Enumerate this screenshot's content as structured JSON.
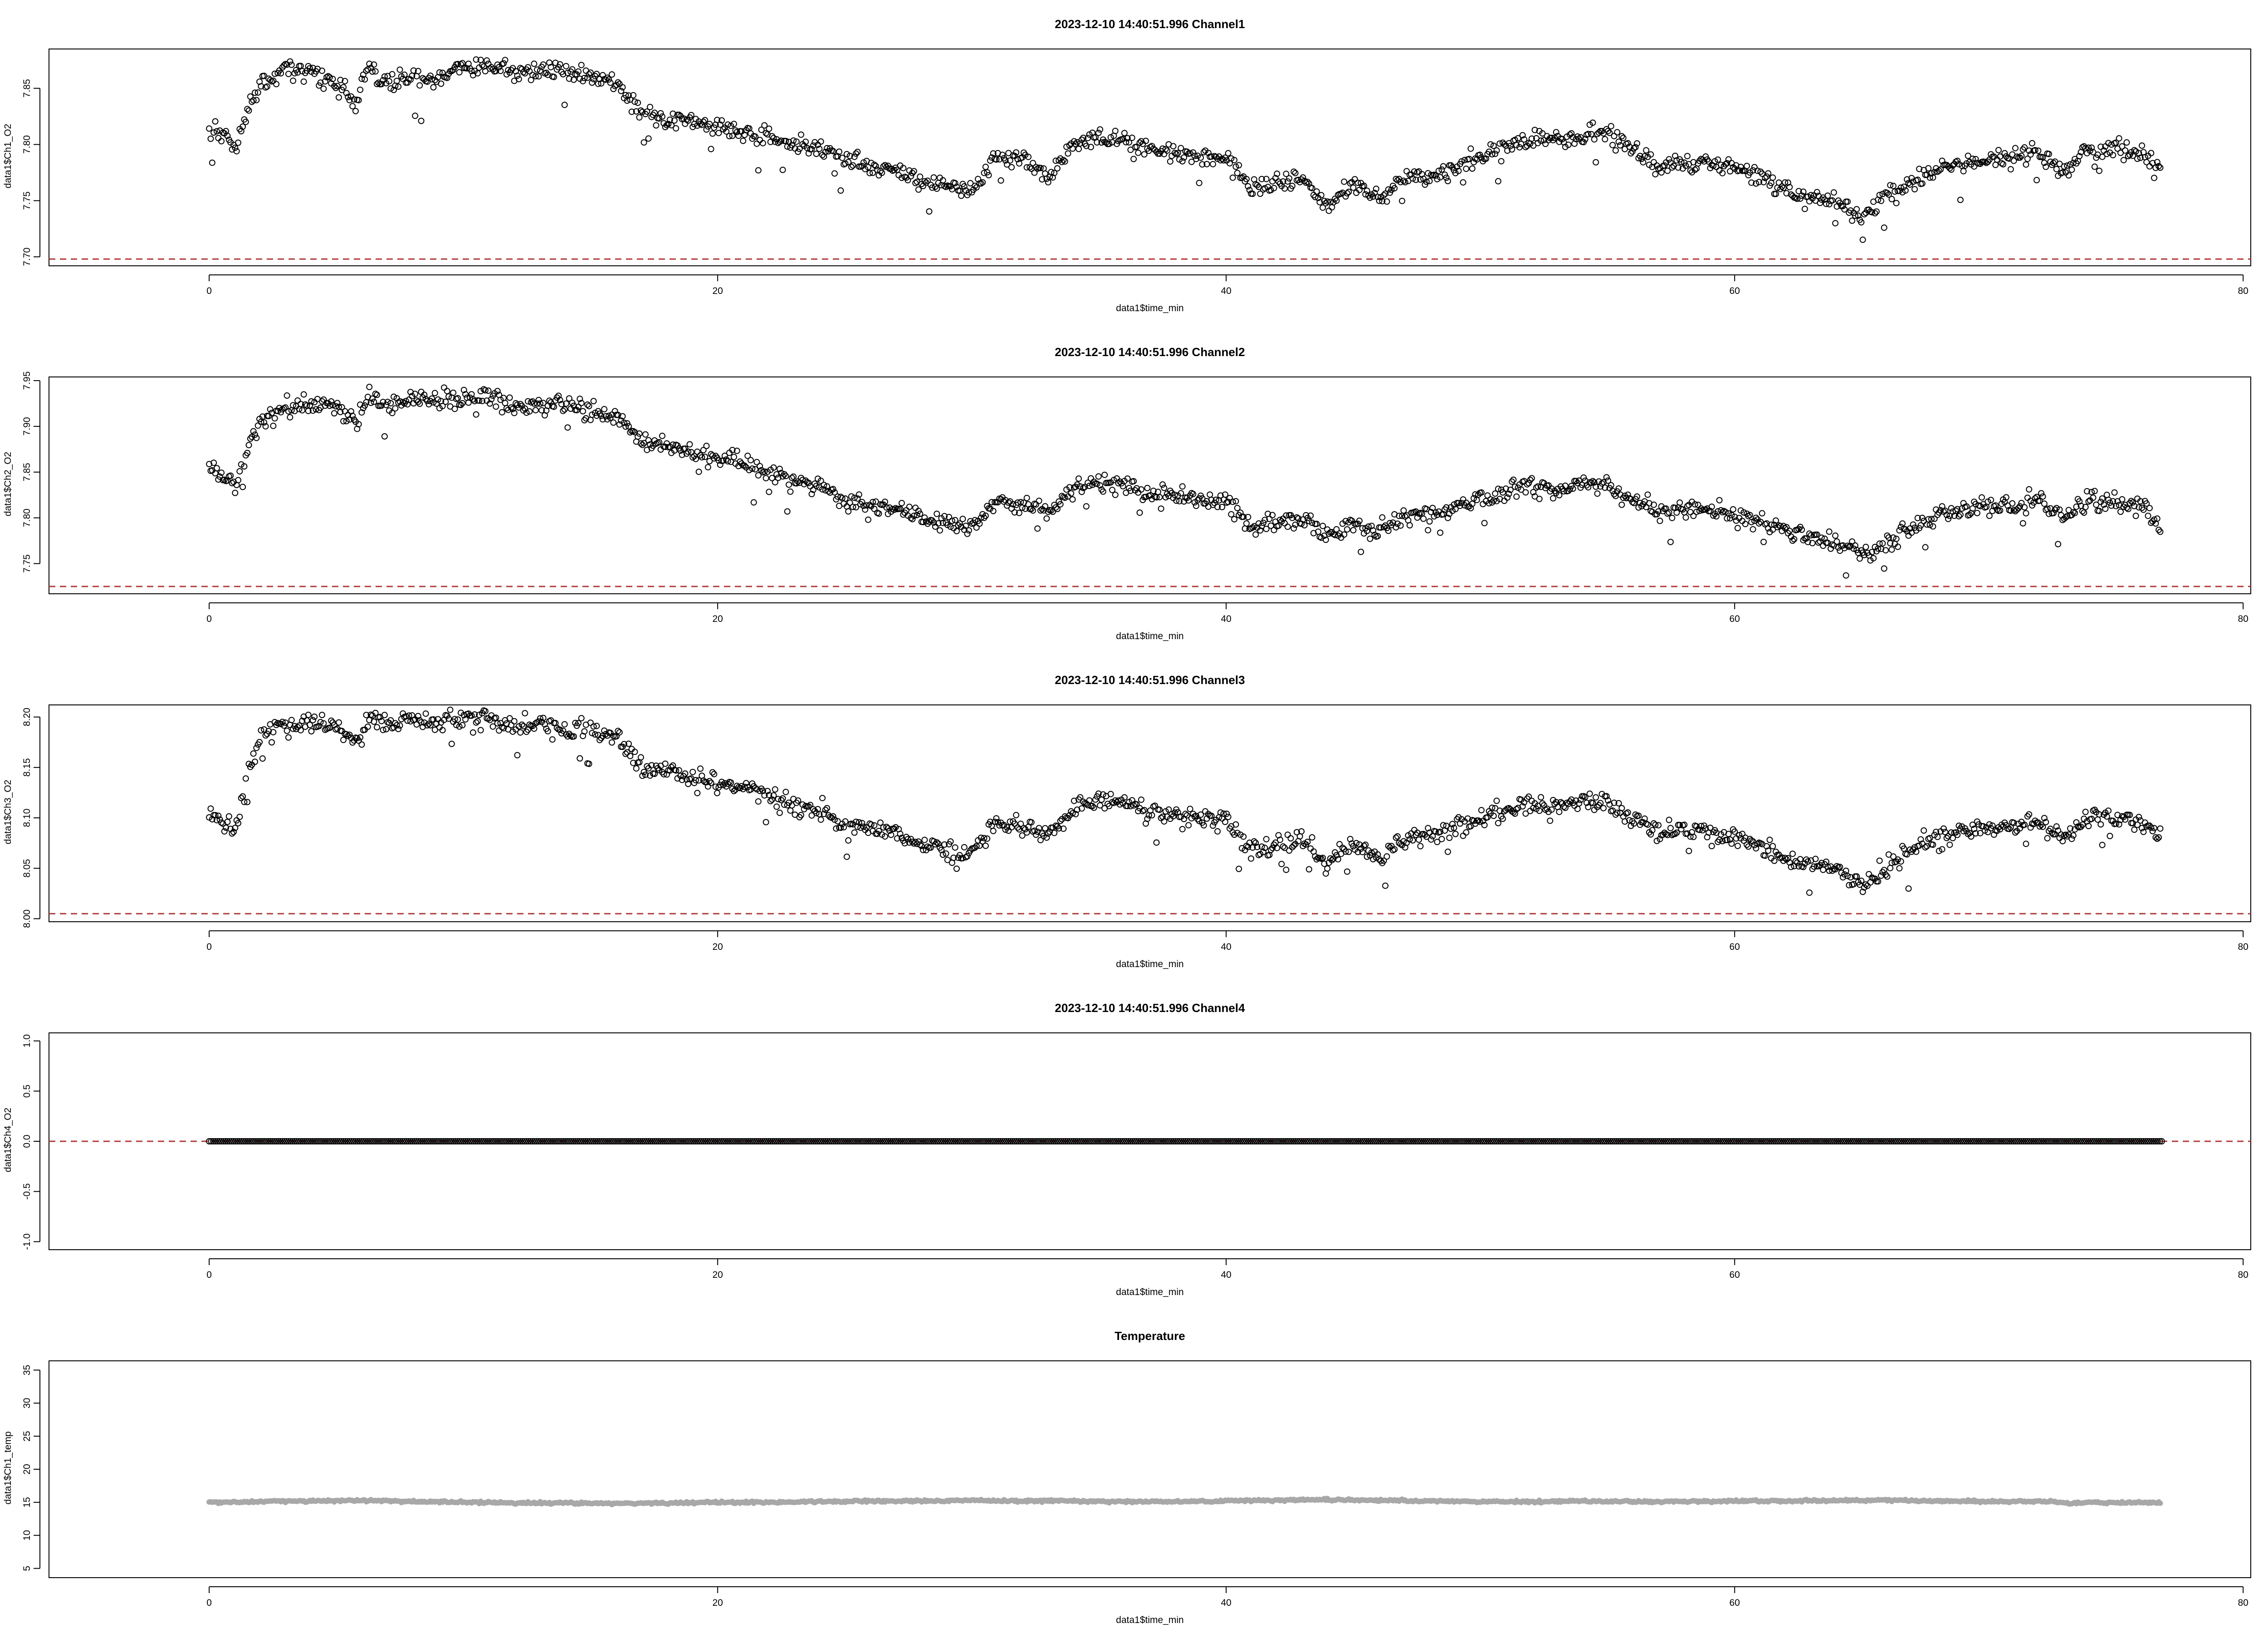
{
  "colors": {
    "points": "#000000",
    "reference_line": "#b03a3a",
    "temperature_points": "#a8a8a8",
    "axes": "#000000",
    "background": "#ffffff"
  },
  "chart_data": [
    {
      "type": "scatter",
      "title": "2023-12-10 14:40:51.996 Channel1",
      "xlabel": "data1$time_min",
      "ylabel": "data1$Ch1_O2",
      "xlim": [
        -6.3,
        80.3
      ],
      "ylim": [
        7.692,
        7.885
      ],
      "xticks": [
        0,
        20,
        40,
        60,
        80
      ],
      "yticks": [
        7.7,
        7.75,
        7.8,
        7.85
      ],
      "ytick_labels": [
        "7.70",
        "7.75",
        "7.80",
        "7.85"
      ],
      "reference_line": 7.698,
      "grid": false,
      "marker": "open-circle",
      "series": [
        {
          "x": [
            0,
            0.5,
            1,
            1.5,
            2,
            3,
            4,
            5,
            5.8,
            6.3,
            7,
            8,
            9,
            10,
            11,
            12,
            13,
            14,
            15,
            16,
            17,
            18,
            19,
            20,
            21,
            22,
            23,
            24,
            25,
            26,
            27,
            28,
            29,
            30,
            31,
            32,
            33,
            34,
            35,
            36,
            37,
            38,
            39,
            40,
            41,
            42,
            43,
            44,
            45,
            46,
            47,
            48,
            49,
            50,
            51,
            52,
            53,
            54,
            55,
            56,
            57,
            58,
            59,
            60,
            61,
            62,
            63,
            64,
            65,
            66,
            67,
            68,
            69,
            70,
            71,
            72,
            73,
            74,
            75,
            76,
            76.8
          ],
          "y": [
            7.812,
            7.812,
            7.795,
            7.832,
            7.852,
            7.868,
            7.865,
            7.852,
            7.835,
            7.87,
            7.855,
            7.86,
            7.858,
            7.868,
            7.872,
            7.862,
            7.866,
            7.866,
            7.862,
            7.855,
            7.83,
            7.825,
            7.818,
            7.815,
            7.812,
            7.808,
            7.8,
            7.798,
            7.785,
            7.78,
            7.778,
            7.768,
            7.765,
            7.76,
            7.79,
            7.788,
            7.77,
            7.8,
            7.805,
            7.803,
            7.795,
            7.792,
            7.788,
            7.788,
            7.76,
            7.765,
            7.77,
            7.745,
            7.762,
            7.752,
            7.77,
            7.772,
            7.78,
            7.79,
            7.798,
            7.805,
            7.802,
            7.808,
            7.81,
            7.795,
            7.78,
            7.785,
            7.782,
            7.78,
            7.772,
            7.76,
            7.755,
            7.75,
            7.735,
            7.755,
            7.765,
            7.78,
            7.782,
            7.788,
            7.79,
            7.792,
            7.775,
            7.798,
            7.795,
            7.793,
            7.78
          ]
        }
      ]
    },
    {
      "type": "scatter",
      "title": "2023-12-10 14:40:51.996 Channel2",
      "xlabel": "data1$time_min",
      "ylabel": "data1$Ch2_O2",
      "xlim": [
        -6.3,
        80.3
      ],
      "ylim": [
        7.717,
        7.954
      ],
      "xticks": [
        0,
        20,
        40,
        60,
        80
      ],
      "yticks": [
        7.75,
        7.8,
        7.85,
        7.9,
        7.95
      ],
      "ytick_labels": [
        "7.75",
        "7.80",
        "7.85",
        "7.90",
        "7.95"
      ],
      "reference_line": 7.725,
      "grid": false,
      "marker": "open-circle",
      "series": [
        {
          "x": [
            0,
            0.5,
            1,
            1.5,
            2,
            3,
            4,
            5,
            5.8,
            6.3,
            7,
            8,
            9,
            10,
            11,
            12,
            13,
            14,
            15,
            16,
            17,
            18,
            19,
            20,
            21,
            22,
            23,
            24,
            25,
            26,
            27,
            28,
            29,
            30,
            31,
            32,
            33,
            34,
            35,
            36,
            37,
            38,
            39,
            40,
            41,
            42,
            43,
            44,
            45,
            46,
            47,
            48,
            49,
            50,
            51,
            52,
            53,
            54,
            55,
            56,
            57,
            58,
            59,
            60,
            61,
            62,
            63,
            64,
            65,
            66,
            67,
            68,
            69,
            70,
            71,
            72,
            73,
            74,
            75,
            76,
            76.8
          ],
          "y": [
            7.852,
            7.845,
            7.835,
            7.872,
            7.905,
            7.922,
            7.925,
            7.92,
            7.905,
            7.935,
            7.925,
            7.93,
            7.928,
            7.935,
            7.932,
            7.922,
            7.925,
            7.922,
            7.918,
            7.91,
            7.885,
            7.88,
            7.87,
            7.865,
            7.86,
            7.85,
            7.84,
            7.835,
            7.82,
            7.815,
            7.812,
            7.8,
            7.795,
            7.79,
            7.82,
            7.815,
            7.805,
            7.83,
            7.838,
            7.835,
            7.825,
            7.822,
            7.82,
            7.82,
            7.79,
            7.795,
            7.802,
            7.778,
            7.795,
            7.785,
            7.8,
            7.805,
            7.812,
            7.82,
            7.828,
            7.835,
            7.83,
            7.838,
            7.835,
            7.82,
            7.808,
            7.812,
            7.808,
            7.805,
            7.795,
            7.785,
            7.78,
            7.772,
            7.758,
            7.775,
            7.79,
            7.805,
            7.808,
            7.812,
            7.815,
            7.818,
            7.8,
            7.82,
            7.815,
            7.812,
            7.795
          ]
        }
      ]
    },
    {
      "type": "scatter",
      "title": "2023-12-10 14:40:51.996 Channel3",
      "xlabel": "data1$time_min",
      "ylabel": "data1$Ch3_O2",
      "xlim": [
        -6.3,
        80.3
      ],
      "ylim": [
        7.997,
        8.212
      ],
      "xticks": [
        0,
        20,
        40,
        60,
        80
      ],
      "yticks": [
        8.0,
        8.05,
        8.1,
        8.15,
        8.2
      ],
      "ytick_labels": [
        "8.00",
        "8.05",
        "8.10",
        "8.15",
        "8.20"
      ],
      "reference_line": 8.005,
      "grid": false,
      "marker": "open-circle",
      "series": [
        {
          "x": [
            0,
            0.5,
            1,
            1.5,
            2,
            3,
            4,
            5,
            5.8,
            6.3,
            7,
            8,
            9,
            10,
            11,
            12,
            13,
            14,
            15,
            16,
            17,
            18,
            19,
            20,
            21,
            22,
            23,
            24,
            25,
            26,
            27,
            28,
            29,
            30,
            31,
            32,
            33,
            34,
            35,
            36,
            37,
            38,
            39,
            40,
            41,
            42,
            43,
            44,
            45,
            46,
            47,
            48,
            49,
            50,
            51,
            52,
            53,
            54,
            55,
            56,
            57,
            58,
            59,
            60,
            61,
            62,
            63,
            64,
            65,
            66,
            67,
            68,
            69,
            70,
            71,
            72,
            73,
            74,
            75,
            76,
            76.8
          ],
          "y": [
            8.105,
            8.1,
            8.09,
            8.14,
            8.18,
            8.193,
            8.195,
            8.19,
            8.175,
            8.2,
            8.192,
            8.196,
            8.194,
            8.2,
            8.198,
            8.19,
            8.192,
            8.19,
            8.186,
            8.18,
            8.15,
            8.148,
            8.14,
            8.135,
            8.13,
            8.122,
            8.112,
            8.108,
            8.092,
            8.088,
            8.085,
            8.075,
            8.07,
            8.065,
            8.095,
            8.092,
            8.082,
            8.11,
            8.118,
            8.115,
            8.105,
            8.102,
            8.1,
            8.098,
            8.065,
            8.072,
            8.08,
            8.052,
            8.072,
            8.06,
            8.078,
            8.082,
            8.09,
            8.1,
            8.108,
            8.115,
            8.11,
            8.118,
            8.115,
            8.098,
            8.085,
            8.09,
            8.085,
            8.082,
            8.072,
            8.06,
            8.055,
            8.048,
            8.032,
            8.052,
            8.068,
            8.082,
            8.086,
            8.09,
            8.094,
            8.098,
            8.08,
            8.102,
            8.098,
            8.095,
            8.08
          ]
        }
      ]
    },
    {
      "type": "scatter",
      "title": "2023-12-10 14:40:51.996 Channel4",
      "xlabel": "data1$time_min",
      "ylabel": "data1$Ch4_O2",
      "xlim": [
        -6.3,
        80.3
      ],
      "ylim": [
        -1.08,
        1.08
      ],
      "xticks": [
        0,
        20,
        40,
        60,
        80
      ],
      "yticks": [
        -1.0,
        -0.5,
        0.0,
        0.5,
        1.0
      ],
      "ytick_labels": [
        "-1.0",
        "-0.5",
        "0.0",
        "0.5",
        "1.0"
      ],
      "reference_line": 0,
      "grid": false,
      "marker": "open-circle",
      "series": [
        {
          "x": [
            0,
            76.8
          ],
          "y": [
            0,
            0
          ]
        }
      ]
    },
    {
      "type": "scatter",
      "title": "Temperature",
      "xlabel": "data1$time_min",
      "ylabel": "data1$Ch1_temp",
      "xlim": [
        -6.3,
        80.3
      ],
      "ylim": [
        3.6,
        36.4
      ],
      "xticks": [
        0,
        20,
        40,
        60,
        80
      ],
      "yticks": [
        5,
        10,
        15,
        20,
        25,
        30,
        35
      ],
      "ytick_labels": [
        "5",
        "10",
        "15",
        "20",
        "25",
        "30",
        "35"
      ],
      "grid": false,
      "marker": "filled-circle",
      "series": [
        {
          "x": [
            0,
            2,
            4,
            6,
            8,
            10,
            12,
            14,
            16,
            18,
            20,
            22,
            24,
            26,
            28,
            30,
            32,
            34,
            36,
            38,
            40,
            42,
            44,
            46,
            48,
            50,
            52,
            54,
            56,
            58,
            60,
            62,
            64,
            66,
            68,
            70,
            72,
            73,
            74,
            76,
            76.8
          ],
          "y": [
            15.0,
            15.1,
            15.2,
            15.3,
            15.1,
            15.0,
            14.9,
            14.9,
            14.8,
            14.9,
            15.0,
            15.0,
            15.1,
            15.2,
            15.2,
            15.3,
            15.2,
            15.2,
            15.1,
            15.1,
            15.2,
            15.3,
            15.4,
            15.3,
            15.2,
            15.1,
            15.1,
            15.2,
            15.1,
            15.1,
            15.2,
            15.2,
            15.3,
            15.3,
            15.2,
            15.1,
            15.2,
            14.9,
            15.0,
            14.9,
            15.0
          ]
        }
      ]
    }
  ]
}
